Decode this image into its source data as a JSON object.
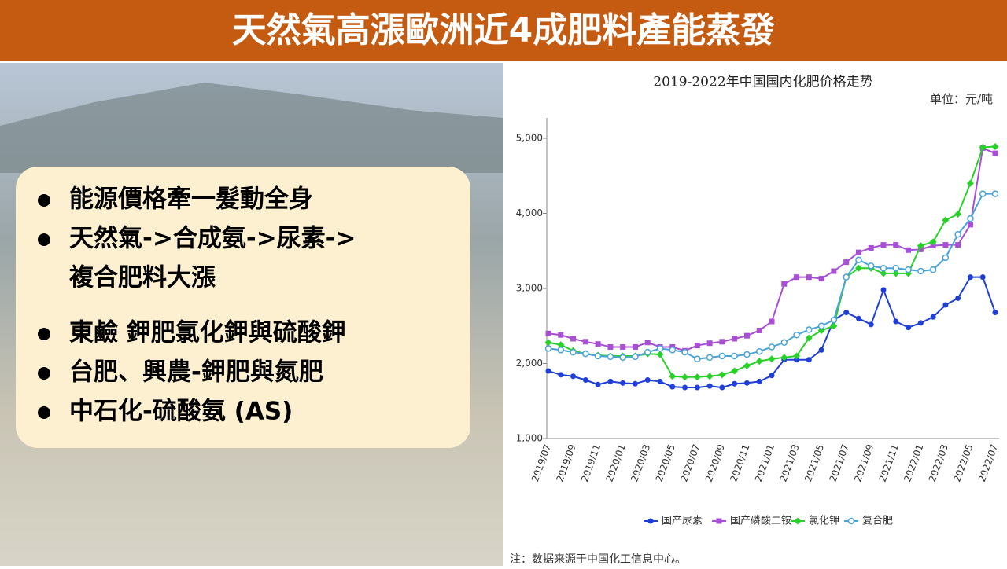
{
  "header": {
    "title": "天然氣高漲歐洲近4成肥料產能蒸發"
  },
  "bullets": [
    [
      "能源價格牽一髮動全身"
    ],
    [
      "天然氣->合成氨->尿素->",
      "複合肥料大漲"
    ],
    [
      "東鹼 鉀肥氯化鉀與硫酸鉀"
    ],
    [
      "台肥、興農-鉀肥與氮肥"
    ],
    [
      "中石化-硫酸氨 (AS)"
    ]
  ],
  "chart_data": {
    "type": "line",
    "title": "2019-2022年中国国内化肥价格走势",
    "unit": "单位：元/吨",
    "note": "注：数据来源于中国化工信息中心。",
    "categories": [
      "2019/07",
      null,
      "2019/09",
      null,
      "2019/11",
      null,
      "2020/01",
      null,
      "2020/03",
      null,
      "2020/05",
      null,
      "2020/07",
      null,
      "2020/09",
      null,
      "2020/11",
      null,
      "2021/01",
      null,
      "2021/03",
      null,
      "2021/05",
      null,
      "2021/07",
      null,
      "2021/09",
      null,
      "2021/11",
      null,
      "2022/01",
      null,
      "2022/03",
      null,
      "2022/05",
      null,
      "2022/07"
    ],
    "series": [
      {
        "name": "国产尿素",
        "color": "#1f3fd6",
        "marker": "dot",
        "values": [
          1900,
          1850,
          1830,
          1780,
          1720,
          1760,
          1740,
          1730,
          1780,
          1760,
          1690,
          1680,
          1680,
          1700,
          1680,
          1730,
          1740,
          1760,
          1840,
          2050,
          2050,
          2050,
          2180,
          2580,
          2680,
          2600,
          2520,
          2980,
          2560,
          2480,
          2540,
          2620,
          2780,
          2870,
          3150,
          3150,
          2680
        ]
      },
      {
        "name": "国产磷酸二铵",
        "color": "#a94fd6",
        "marker": "square",
        "values": [
          2400,
          2380,
          2330,
          2290,
          2260,
          2220,
          2220,
          2220,
          2280,
          2220,
          2220,
          2170,
          2240,
          2270,
          2290,
          2330,
          2370,
          2440,
          2560,
          3060,
          3150,
          3150,
          3130,
          3230,
          3350,
          3480,
          3540,
          3580,
          3580,
          3510,
          3520,
          3570,
          3580,
          3580,
          3850,
          4870,
          4800
        ]
      },
      {
        "name": "氯化钾",
        "color": "#27d127",
        "marker": "diamond",
        "values": [
          2280,
          2250,
          2170,
          2130,
          2110,
          2100,
          2100,
          2100,
          2130,
          2120,
          1830,
          1820,
          1820,
          1830,
          1850,
          1900,
          1970,
          2030,
          2060,
          2080,
          2100,
          2340,
          2440,
          2500,
          3150,
          3270,
          3270,
          3200,
          3200,
          3200,
          3570,
          3620,
          3910,
          3990,
          4400,
          4880,
          4890
        ]
      },
      {
        "name": "复合肥",
        "color": "#4aa3d8",
        "marker": "ring",
        "values": [
          2200,
          2180,
          2150,
          2130,
          2100,
          2090,
          2080,
          2090,
          2150,
          2200,
          2180,
          2150,
          2060,
          2080,
          2100,
          2100,
          2120,
          2160,
          2220,
          2280,
          2380,
          2450,
          2500,
          2580,
          3150,
          3380,
          3300,
          3270,
          3270,
          3250,
          3230,
          3250,
          3410,
          3720,
          3930,
          4260,
          4260
        ]
      }
    ],
    "ylim": [
      1000,
      5000
    ],
    "yticks": [
      {
        "value": 1000,
        "label": "1,000"
      },
      {
        "value": 2000,
        "label": "2,000"
      },
      {
        "value": 3000,
        "label": "3,000"
      },
      {
        "value": 4000,
        "label": "4,000"
      },
      {
        "value": 5000,
        "label": "5,000"
      }
    ],
    "grid": false,
    "legend": "bottom"
  }
}
